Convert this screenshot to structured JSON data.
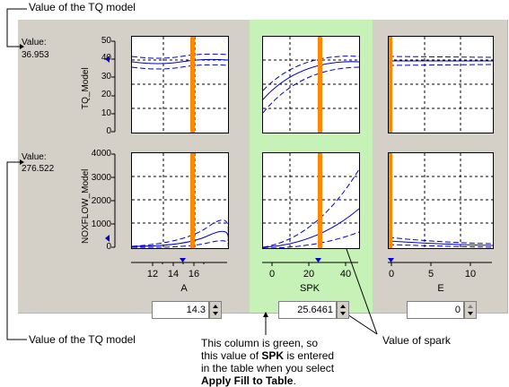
{
  "annotations": {
    "top": "Value of the TQ model",
    "bottom_left": "Value of the TQ model",
    "value_of_spark": "Value of spark",
    "green_note_line1": "This column is green, so",
    "green_note_line2_pre": "this value of ",
    "green_note_line2_bold": "SPK",
    "green_note_line2_post": " is entered",
    "green_note_line3": "in the table when you select",
    "green_note_line4_bold": "Apply Fill to Table",
    "green_note_line4_post": "."
  },
  "models": [
    {
      "value_label": "Value:",
      "value": "36.953",
      "axis_label": "TQ_Model",
      "ticks": [
        "50",
        "40",
        "30",
        "20",
        "10",
        "0"
      ]
    },
    {
      "value_label": "Value:",
      "value": "276.522",
      "axis_label": "NOXFLOW_Model",
      "ticks": [
        "4000",
        "3000",
        "2000",
        "1000",
        "0"
      ]
    }
  ],
  "factors": [
    {
      "name": "A",
      "ticks": [
        "12",
        "14",
        "16"
      ],
      "value": "14.3",
      "selected": false
    },
    {
      "name": "SPK",
      "ticks": [
        "0",
        "20",
        "40"
      ],
      "value": "25.6461",
      "selected": true
    },
    {
      "name": "E",
      "ticks": [
        "0",
        "5",
        "10"
      ],
      "value": "0",
      "selected": false
    }
  ],
  "colors": {
    "panel": "#d4d0c8",
    "green": "#c6f2b8",
    "curve": "#0000cc",
    "marker": "#ff8800",
    "grid": "#000000"
  }
}
